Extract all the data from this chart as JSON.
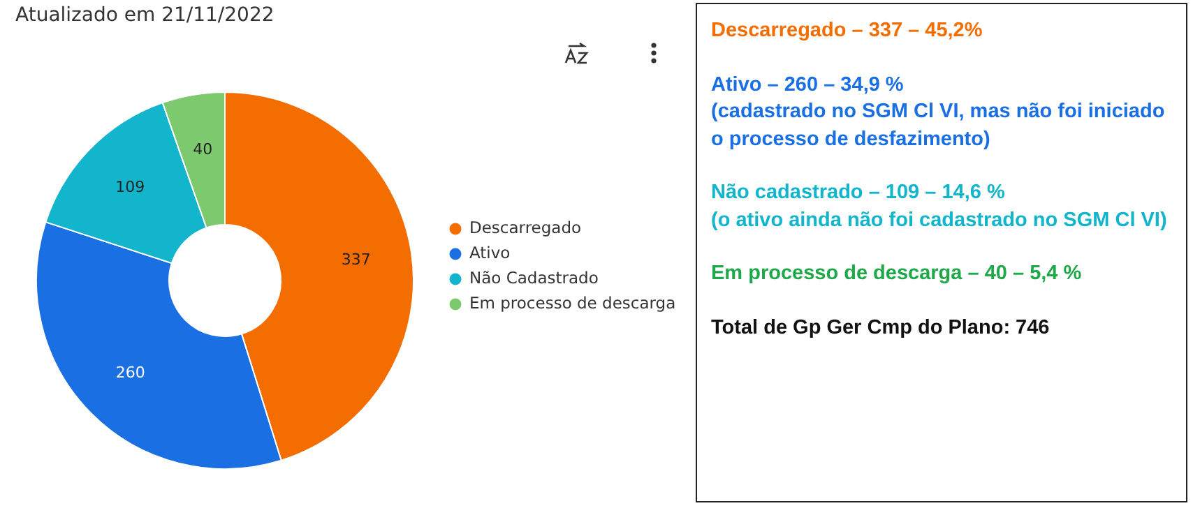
{
  "chart_data": [
    {
      "type": "donut",
      "title": "Atualizado em 21/11/2022",
      "categories": [
        "Descarregado",
        "Ativo",
        "Não Cadastrado",
        "Em processo de descarga"
      ],
      "values": [
        337,
        260,
        109,
        40
      ],
      "colors": [
        "#f46d00",
        "#1a6fe3",
        "#12b5cb",
        "#7dc96e"
      ],
      "data_labels": true,
      "legend": "right"
    },
    {
      "type": "other",
      "annotations": [
        "Descarregado – 337 – 45,2%",
        "Ativo – 260 – 34,9 %",
        "(cadastrado no SGM Cl VI, mas não foi iniciado o processo de desfazimento)",
        "Não cadastrado – 109 – 14,6 %",
        "(o ativo ainda não foi cadastrado no SGM Cl VI)",
        "Em processo de descarga – 40 – 5,4 %",
        "Total de Gp Ger Cmp do Plano: 746"
      ],
      "colors": [
        "#f46d00",
        "#1a6fe3",
        "#1a6fe3",
        "#12b5cb",
        "#12b5cb",
        "#1fa84a",
        "#111111"
      ]
    }
  ]
}
